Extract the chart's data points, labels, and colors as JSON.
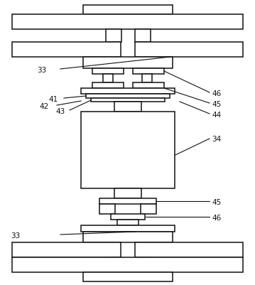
{
  "bg_color": "#ffffff",
  "line_color": "#1a1a1a",
  "lw": 1.0,
  "fig_w": 3.59,
  "fig_h": 4.01
}
